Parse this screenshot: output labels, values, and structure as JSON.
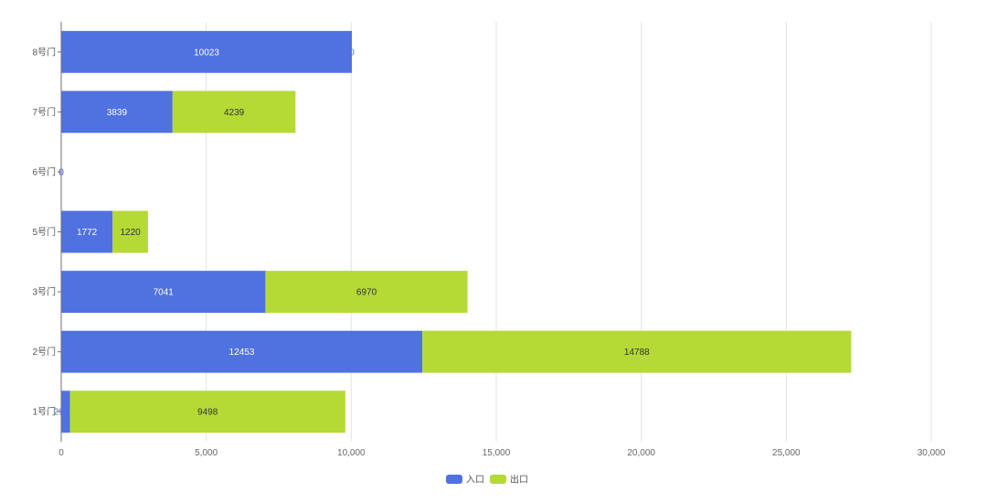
{
  "chart_data": {
    "type": "bar",
    "orientation": "horizontal",
    "stacked": true,
    "categories": [
      "8号门",
      "7号门",
      "6号门",
      "5号门",
      "3号门",
      "2号门",
      "1号门"
    ],
    "series": [
      {
        "name": "入口",
        "color": "#5071e0",
        "label_color": "#ffffff",
        "values": [
          10023,
          3839,
          0,
          1772,
          7041,
          12453,
          299
        ]
      },
      {
        "name": "出口",
        "color": "#b5d935",
        "label_color": "#333333",
        "values": [
          0,
          4239,
          0,
          1220,
          6970,
          14788,
          9498
        ]
      }
    ],
    "x_ticks": [
      "0",
      "5,000",
      "10,000",
      "15,000",
      "20,000",
      "25,000",
      "30,000"
    ],
    "xlim": [
      0,
      30000
    ],
    "grid": "vertical",
    "legend_position": "bottom-center"
  }
}
